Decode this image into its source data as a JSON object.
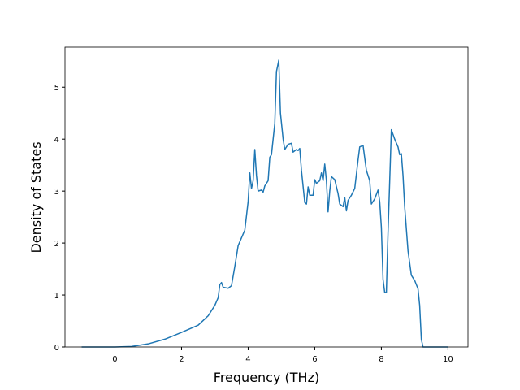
{
  "chart_data": {
    "type": "line",
    "xlabel": "Frequency (THz)",
    "ylabel": "Density of States",
    "xlim": [
      -1.5,
      10.6
    ],
    "ylim": [
      0,
      5.77
    ],
    "xticks": [
      0,
      2,
      4,
      6,
      8,
      10
    ],
    "yticks": [
      0,
      1,
      2,
      3,
      4,
      5
    ],
    "series": [
      {
        "color": "#1f77b4",
        "x": [
          -1,
          0,
          0.5,
          1,
          1.5,
          2,
          2.5,
          2.8,
          3.0,
          3.1,
          3.15,
          3.2,
          3.25,
          3.4,
          3.5,
          3.6,
          3.7,
          3.8,
          3.9,
          4.0,
          4.05,
          4.1,
          4.15,
          4.2,
          4.25,
          4.3,
          4.4,
          4.45,
          4.5,
          4.6,
          4.65,
          4.7,
          4.8,
          4.85,
          4.92,
          4.97,
          5.05,
          5.1,
          5.2,
          5.3,
          5.35,
          5.45,
          5.5,
          5.55,
          5.6,
          5.7,
          5.75,
          5.8,
          5.85,
          5.95,
          6.0,
          6.05,
          6.15,
          6.2,
          6.25,
          6.3,
          6.35,
          6.4,
          6.45,
          6.5,
          6.6,
          6.7,
          6.75,
          6.85,
          6.9,
          6.95,
          7.0,
          7.1,
          7.2,
          7.3,
          7.35,
          7.45,
          7.55,
          7.65,
          7.7,
          7.8,
          7.9,
          7.95,
          8.0,
          8.05,
          8.1,
          8.15,
          8.2,
          8.3,
          8.4,
          8.5,
          8.55,
          8.6,
          8.65,
          8.7,
          8.8,
          8.9,
          9.0,
          9.1,
          9.15,
          9.2,
          9.25,
          10
        ],
        "values": [
          0,
          0,
          0.01,
          0.06,
          0.15,
          0.28,
          0.42,
          0.6,
          0.8,
          0.95,
          1.2,
          1.24,
          1.15,
          1.13,
          1.18,
          1.55,
          1.95,
          2.1,
          2.25,
          2.8,
          3.35,
          3.05,
          3.2,
          3.8,
          3.3,
          3.0,
          3.02,
          2.98,
          3.1,
          3.2,
          3.65,
          3.7,
          4.3,
          5.3,
          5.52,
          4.5,
          4.0,
          3.8,
          3.9,
          3.92,
          3.75,
          3.8,
          3.78,
          3.82,
          3.4,
          2.78,
          2.75,
          3.08,
          2.92,
          2.92,
          3.22,
          3.15,
          3.2,
          3.35,
          3.2,
          3.52,
          3.2,
          2.6,
          3.0,
          3.28,
          3.22,
          2.95,
          2.75,
          2.7,
          2.88,
          2.62,
          2.82,
          2.92,
          3.05,
          3.6,
          3.85,
          3.88,
          3.4,
          3.2,
          2.75,
          2.85,
          3.02,
          2.8,
          2.3,
          1.3,
          1.05,
          1.05,
          2.2,
          4.18,
          4.0,
          3.85,
          3.7,
          3.72,
          3.3,
          2.7,
          1.85,
          1.38,
          1.28,
          1.12,
          0.8,
          0.15,
          0,
          0
        ]
      }
    ]
  }
}
